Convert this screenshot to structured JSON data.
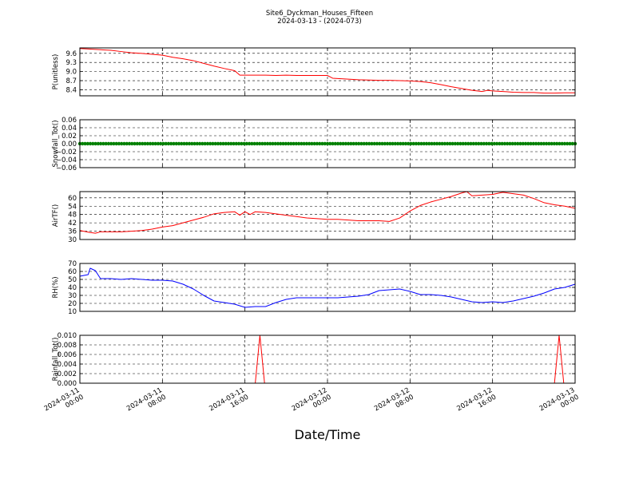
{
  "chart_data": {
    "title": "Site6_Dyckman_Houses_Fifteen",
    "subtitle": "2024-03-13 - (2024-073)",
    "xlabel": "Date/Time",
    "x_range": [
      "2024-03-11 00:00",
      "2024-03-13 00:00"
    ],
    "x_ticks": [
      "2024-03-11 00:00",
      "2024-03-11 08:00",
      "2024-03-11 16:00",
      "2024-03-12 00:00",
      "2024-03-12 08:00",
      "2024-03-12 16:00",
      "2024-03-13 00:00"
    ],
    "x_tick_labels": [
      [
        "2024-03-11",
        "00:00"
      ],
      [
        "2024-03-11",
        "08:00"
      ],
      [
        "2024-03-11",
        "16:00"
      ],
      [
        "2024-03-12",
        "00:00"
      ],
      [
        "2024-03-12",
        "08:00"
      ],
      [
        "2024-03-12",
        "16:00"
      ],
      [
        "2024-03-13",
        "00:00"
      ]
    ],
    "grid": true,
    "panels": [
      {
        "type": "line",
        "ylabel": "P(unitless)",
        "color": "#ff0000",
        "ylim": [
          8.2,
          9.78
        ],
        "yticks": [
          "8.4",
          "8.7",
          "9.0",
          "9.3",
          "9.6"
        ],
        "hours": [
          0,
          1,
          2,
          3,
          4,
          5,
          6,
          7,
          8,
          9,
          10,
          11,
          12,
          13,
          14,
          15,
          15.5,
          16,
          17,
          18,
          19,
          20,
          21,
          22,
          23,
          24,
          24.5,
          25,
          26,
          27,
          28,
          29,
          30,
          31,
          32,
          33,
          34,
          35,
          36,
          37,
          38,
          39,
          39.5,
          40,
          41,
          42,
          43,
          44,
          45,
          46,
          47,
          48
        ],
        "values": [
          9.76,
          9.74,
          9.72,
          9.7,
          9.66,
          9.62,
          9.6,
          9.57,
          9.54,
          9.47,
          9.42,
          9.36,
          9.27,
          9.18,
          9.1,
          9.03,
          8.88,
          8.88,
          8.88,
          8.88,
          8.87,
          8.88,
          8.87,
          8.87,
          8.87,
          8.87,
          8.78,
          8.77,
          8.75,
          8.73,
          8.72,
          8.71,
          8.71,
          8.7,
          8.69,
          8.67,
          8.63,
          8.57,
          8.5,
          8.44,
          8.38,
          8.34,
          8.38,
          8.36,
          8.34,
          8.32,
          8.31,
          8.31,
          8.29,
          8.29,
          8.3,
          8.3
        ]
      },
      {
        "type": "scatter",
        "ylabel": "Snowfall_Tot()",
        "color": "#008000",
        "ylim": [
          -0.06,
          0.06
        ],
        "yticks": [
          "−0.06",
          "−0.04",
          "−0.02",
          "0.00",
          "0.02",
          "0.04",
          "0.06"
        ],
        "constant_value": 0.0,
        "hours_start": 0,
        "hours_end": 48
      },
      {
        "type": "line",
        "ylabel": "AirTF()",
        "color": "#ff0000",
        "ylim": [
          30,
          64.5
        ],
        "yticks": [
          "30",
          "36",
          "42",
          "48",
          "54",
          "60"
        ],
        "hours": [
          0,
          1,
          1.5,
          2,
          3,
          4,
          5,
          6,
          7,
          8,
          9,
          10,
          11,
          12,
          13,
          14,
          15,
          15.5,
          16,
          16.5,
          17,
          18,
          19,
          20,
          21,
          22,
          23,
          24,
          25,
          26,
          27,
          28,
          29,
          30,
          31,
          32,
          33,
          34,
          35,
          36,
          37,
          37.5,
          38,
          39,
          40,
          41,
          42,
          43,
          44,
          45,
          46,
          47,
          48
        ],
        "values": [
          36.5,
          35,
          34.5,
          35.5,
          35.5,
          35.5,
          36,
          36.5,
          37.5,
          39,
          40,
          42,
          44,
          46,
          48.5,
          49.5,
          50,
          47.5,
          50,
          48,
          50,
          49.5,
          48.5,
          47.5,
          46.5,
          45.5,
          45,
          44.5,
          44.5,
          44,
          43.5,
          43.5,
          43.5,
          43,
          45.5,
          50.5,
          54.5,
          57,
          59,
          61,
          63.5,
          64.5,
          61.5,
          62,
          62.5,
          64,
          63,
          62,
          59.5,
          56.5,
          55,
          54,
          52.5
        ]
      },
      {
        "type": "line",
        "ylabel": "RH(%)",
        "color": "#0000ff",
        "ylim": [
          10,
          70
        ],
        "yticks": [
          "10",
          "20",
          "30",
          "40",
          "50",
          "60",
          "70"
        ],
        "hours": [
          0,
          0.8,
          1.0,
          1.5,
          2,
          3,
          4,
          5,
          6,
          7,
          8,
          9,
          10,
          11,
          12,
          13,
          14,
          15,
          16,
          17,
          18,
          19,
          20,
          21,
          22,
          23,
          24,
          25,
          26,
          27,
          28,
          29,
          30,
          31,
          32,
          32.5,
          33,
          34,
          35,
          36,
          37,
          38,
          39,
          40,
          41,
          42,
          43,
          44,
          45,
          46,
          47,
          48
        ],
        "values": [
          54,
          56,
          64,
          61,
          51,
          51,
          50,
          51,
          50,
          49,
          49,
          48,
          44,
          38,
          30,
          23,
          21,
          19,
          15,
          16,
          16,
          21,
          25,
          27,
          27,
          27,
          27,
          27,
          28,
          29,
          31,
          36,
          37,
          38,
          35,
          33,
          31,
          31,
          30,
          28,
          25,
          22,
          21,
          22,
          21,
          23,
          26,
          29,
          33,
          38,
          40,
          44
        ]
      },
      {
        "type": "line",
        "ylabel": "Rainfall_Tot()",
        "color": "#ff0000",
        "ylim": [
          0,
          0.01
        ],
        "yticks": [
          "0.000",
          "0.002",
          "0.004",
          "0.006",
          "0.008",
          "0.010"
        ],
        "hours": [
          0,
          17.0,
          17.45,
          17.9,
          46.0,
          46.45,
          46.9,
          48
        ],
        "values": [
          0,
          0,
          0.01,
          0,
          0,
          0.01,
          0,
          0
        ]
      }
    ]
  }
}
